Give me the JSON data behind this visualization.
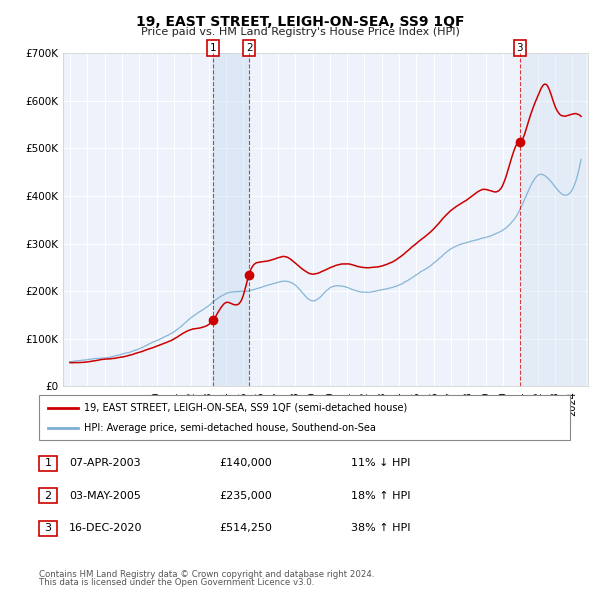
{
  "title": "19, EAST STREET, LEIGH-ON-SEA, SS9 1QF",
  "subtitle": "Price paid vs. HM Land Registry's House Price Index (HPI)",
  "legend_line1": "19, EAST STREET, LEIGH-ON-SEA, SS9 1QF (semi-detached house)",
  "legend_line2": "HPI: Average price, semi-detached house, Southend-on-Sea",
  "footer1": "Contains HM Land Registry data © Crown copyright and database right 2024.",
  "footer2": "This data is licensed under the Open Government Licence v3.0.",
  "red_color": "#cc0000",
  "blue_color": "#7bafd4",
  "blue_fill": "#dce8f5",
  "background_color": "#eef2fa",
  "grid_color": "#ffffff",
  "transactions": [
    {
      "num": 1,
      "date": "07-APR-2003",
      "price": "£140,000",
      "diff": "11% ↓ HPI",
      "year": 2003.27
    },
    {
      "num": 2,
      "date": "03-MAY-2005",
      "price": "£235,000",
      "diff": "18% ↑ HPI",
      "year": 2005.34
    },
    {
      "num": 3,
      "date": "16-DEC-2020",
      "price": "£514,250",
      "diff": "38% ↑ HPI",
      "year": 2020.96
    }
  ],
  "transaction_values": [
    140000,
    235000,
    514250
  ],
  "ylim": [
    0,
    700000
  ],
  "yticks": [
    0,
    100000,
    200000,
    300000,
    400000,
    500000,
    600000,
    700000
  ],
  "ytick_labels": [
    "£0",
    "£100K",
    "£200K",
    "£300K",
    "£400K",
    "£500K",
    "£600K",
    "£700K"
  ],
  "xstart": 1995,
  "xend": 2025
}
